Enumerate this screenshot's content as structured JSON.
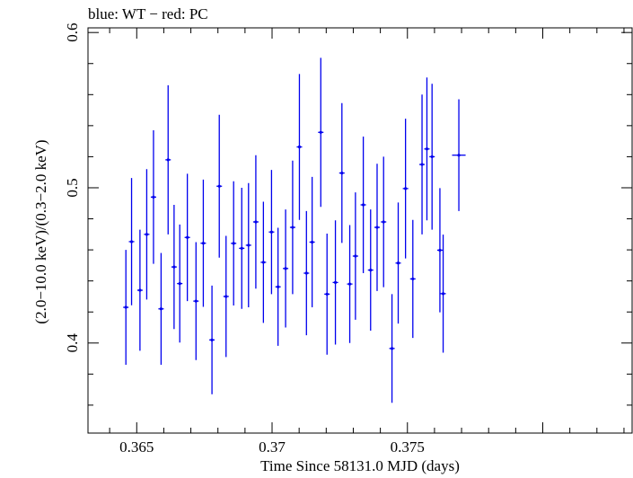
{
  "chart_data": {
    "type": "scatter",
    "title": "blue: WT − red: PC",
    "xlabel": "Time Since 58131.0 MJD (days)",
    "ylabel": "(2.0−10.0 keV)/(0.3−2.0 keV)",
    "xlim": [
      0.3632,
      0.3833
    ],
    "ylim": [
      0.342,
      0.603
    ],
    "xticks": [
      0.365,
      0.37,
      0.375
    ],
    "xtick_labels": [
      "0.365",
      "0.37",
      "0.375"
    ],
    "yticks": [
      0.4,
      0.5,
      0.6
    ],
    "ytick_labels": [
      "0.4",
      "0.5",
      "0.6"
    ],
    "grid": false,
    "series": [
      {
        "color": "#0000ee",
        "x": [
          0.3646,
          0.36481,
          0.36512,
          0.36537,
          0.36562,
          0.3659,
          0.36616,
          0.36638,
          0.36659,
          0.36687,
          0.36719,
          0.36746,
          0.36778,
          0.36805,
          0.3683,
          0.36858,
          0.36888,
          0.36913,
          0.3694,
          0.36968,
          0.36998,
          0.37022,
          0.3705,
          0.37076,
          0.37101,
          0.37127,
          0.37148,
          0.3718,
          0.37203,
          0.37234,
          0.37258,
          0.37287,
          0.37308,
          0.37337,
          0.37364,
          0.37388,
          0.37412,
          0.37443,
          0.37466,
          0.37493,
          0.3752,
          0.37554,
          0.37572,
          0.37591,
          0.3762,
          0.37632,
          0.3769
        ],
        "y": [
          0.423,
          0.4653,
          0.434,
          0.47,
          0.494,
          0.422,
          0.518,
          0.449,
          0.4383,
          0.468,
          0.427,
          0.4643,
          0.402,
          0.501,
          0.43,
          0.4642,
          0.461,
          0.463,
          0.478,
          0.452,
          0.4715,
          0.4362,
          0.448,
          0.4745,
          0.5263,
          0.445,
          0.465,
          0.5357,
          0.4315,
          0.439,
          0.5095,
          0.438,
          0.456,
          0.489,
          0.447,
          0.4745,
          0.478,
          0.3965,
          0.4515,
          0.4995,
          0.4413,
          0.515,
          0.525,
          0.52,
          0.4598,
          0.4318,
          0.521
        ],
        "yerr": [
          0.037,
          0.041,
          0.039,
          0.042,
          0.043,
          0.036,
          0.048,
          0.04,
          0.038,
          0.041,
          0.038,
          0.041,
          0.035,
          0.046,
          0.039,
          0.04,
          0.039,
          0.04,
          0.043,
          0.039,
          0.04,
          0.038,
          0.038,
          0.043,
          0.047,
          0.04,
          0.042,
          0.048,
          0.039,
          0.04,
          0.045,
          0.038,
          0.041,
          0.044,
          0.039,
          0.041,
          0.042,
          0.035,
          0.039,
          0.045,
          0.038,
          0.045,
          0.046,
          0.047,
          0.04,
          0.038,
          0.036
        ],
        "xerr": [
          0.0001,
          0.0001,
          0.0001,
          0.0001,
          0.0001,
          0.0001,
          0.0001,
          0.0001,
          0.0001,
          0.0001,
          0.0001,
          0.0001,
          0.0001,
          0.0001,
          0.0001,
          0.0001,
          0.0001,
          0.0001,
          0.0001,
          0.0001,
          0.0001,
          0.0001,
          0.0001,
          0.0001,
          0.0001,
          0.0001,
          0.0001,
          0.0001,
          0.0001,
          0.0001,
          0.0001,
          0.0001,
          0.0001,
          0.0001,
          0.0001,
          0.0001,
          0.0001,
          0.0001,
          0.0001,
          0.0001,
          0.0001,
          0.0001,
          0.0001,
          0.0001,
          0.0001,
          0.0001,
          0.00025
        ]
      }
    ]
  }
}
